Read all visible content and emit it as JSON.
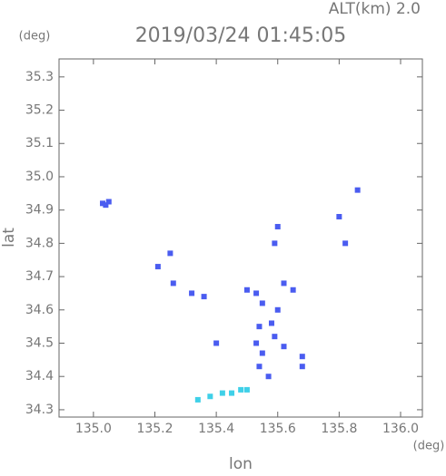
{
  "chart_data": {
    "type": "scatter",
    "title": "2019/03/24 01:45:05",
    "subtitle": "ALT(km) 2.0",
    "y_unit": "(deg)",
    "x_unit": "(deg)",
    "ylabel": "lat",
    "xlabel": "lon",
    "xlim": [
      134.888,
      136.071
    ],
    "ylim": [
      34.278,
      35.354
    ],
    "xticks": [
      {
        "value": 135,
        "label": "135.0"
      },
      135.2,
      135.4,
      135.6,
      135.8,
      {
        "value": 136,
        "label": "136.0"
      }
    ],
    "yticks": [
      34.3,
      34.4,
      34.5,
      34.6,
      34.7,
      34.8,
      34.9,
      {
        "value": 35,
        "label": "35.0"
      },
      35.1,
      35.2,
      35.3
    ],
    "series": [
      {
        "color": "#4a5cf0",
        "x": [
          135.03,
          135.05,
          135.04,
          135.21,
          135.25,
          135.26,
          135.32,
          135.36,
          135.5,
          135.53,
          135.55,
          135.6,
          135.65,
          135.58,
          135.54,
          135.53,
          135.55,
          135.59,
          135.62,
          135.68,
          135.68,
          135.4,
          135.54,
          135.57,
          135.8,
          135.82,
          135.86,
          135.6,
          135.59,
          135.62
        ],
        "values": [
          34.92,
          34.925,
          34.915,
          34.73,
          34.77,
          34.68,
          34.65,
          34.64,
          34.66,
          34.65,
          34.62,
          34.6,
          34.66,
          34.56,
          34.55,
          34.5,
          34.47,
          34.52,
          34.49,
          34.43,
          34.46,
          34.5,
          34.43,
          34.4,
          34.88,
          34.8,
          34.96,
          34.85,
          34.8,
          34.68
        ]
      },
      {
        "color": "#3fd0e8",
        "x": [
          135.34,
          135.38,
          135.42,
          135.45,
          135.48,
          135.5
        ],
        "values": [
          34.33,
          34.34,
          34.35,
          34.35,
          34.36,
          34.36
        ]
      }
    ]
  }
}
